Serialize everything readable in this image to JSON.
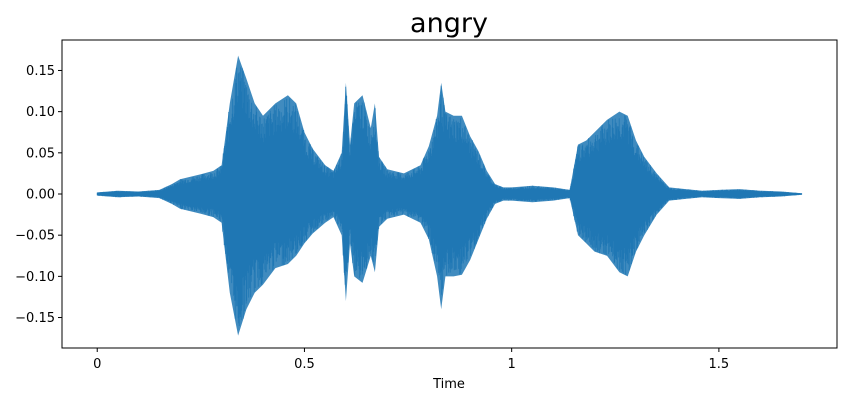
{
  "chart_data": {
    "type": "area",
    "title": "angry",
    "xlabel": "Time",
    "ylabel": "",
    "xlim": [
      -0.085,
      1.785
    ],
    "ylim": [
      -0.187,
      0.187
    ],
    "xticks": [
      {
        "value": 0,
        "label": "0"
      },
      {
        "value": 0.5,
        "label": "0.5"
      },
      {
        "value": 1,
        "label": "1"
      },
      {
        "value": 1.5,
        "label": "1.5"
      }
    ],
    "yticks": [
      {
        "value": 0.15,
        "label": "0.15"
      },
      {
        "value": 0.1,
        "label": "0.10"
      },
      {
        "value": 0.05,
        "label": "0.05"
      },
      {
        "value": 0.0,
        "label": "0.00"
      },
      {
        "value": -0.05,
        "label": "−0.05"
      },
      {
        "value": -0.1,
        "label": "−0.10"
      },
      {
        "value": -0.15,
        "label": "−0.15"
      }
    ],
    "grid": false,
    "color": "#1f77b4",
    "series": [
      {
        "description_points": "amplitude envelope (time in s, upper, lower)",
        "x": [
          0.0,
          0.05,
          0.1,
          0.15,
          0.18,
          0.2,
          0.25,
          0.28,
          0.3,
          0.32,
          0.34,
          0.36,
          0.38,
          0.4,
          0.43,
          0.46,
          0.48,
          0.5,
          0.52,
          0.55,
          0.57,
          0.59,
          0.6,
          0.61,
          0.62,
          0.64,
          0.66,
          0.67,
          0.68,
          0.7,
          0.74,
          0.78,
          0.8,
          0.82,
          0.83,
          0.84,
          0.86,
          0.88,
          0.9,
          0.92,
          0.94,
          0.96,
          0.98,
          1.0,
          1.05,
          1.1,
          1.14,
          1.16,
          1.18,
          1.2,
          1.23,
          1.26,
          1.28,
          1.3,
          1.32,
          1.35,
          1.38,
          1.42,
          1.46,
          1.5,
          1.55,
          1.6,
          1.65,
          1.7
        ],
        "upper": [
          0.002,
          0.004,
          0.003,
          0.005,
          0.012,
          0.018,
          0.024,
          0.028,
          0.035,
          0.11,
          0.168,
          0.14,
          0.11,
          0.095,
          0.11,
          0.12,
          0.11,
          0.075,
          0.055,
          0.035,
          0.028,
          0.05,
          0.135,
          0.06,
          0.11,
          0.12,
          0.08,
          0.11,
          0.045,
          0.03,
          0.025,
          0.035,
          0.058,
          0.095,
          0.135,
          0.1,
          0.095,
          0.095,
          0.07,
          0.052,
          0.028,
          0.012,
          0.008,
          0.008,
          0.01,
          0.008,
          0.005,
          0.06,
          0.065,
          0.075,
          0.09,
          0.1,
          0.095,
          0.065,
          0.045,
          0.025,
          0.008,
          0.006,
          0.004,
          0.005,
          0.006,
          0.004,
          0.003,
          0.001
        ],
        "lower": [
          -0.002,
          -0.004,
          -0.003,
          -0.005,
          -0.012,
          -0.018,
          -0.024,
          -0.028,
          -0.035,
          -0.12,
          -0.172,
          -0.14,
          -0.12,
          -0.11,
          -0.09,
          -0.085,
          -0.075,
          -0.06,
          -0.048,
          -0.035,
          -0.028,
          -0.05,
          -0.13,
          -0.06,
          -0.1,
          -0.108,
          -0.075,
          -0.095,
          -0.04,
          -0.03,
          -0.025,
          -0.035,
          -0.055,
          -0.1,
          -0.14,
          -0.1,
          -0.1,
          -0.098,
          -0.08,
          -0.055,
          -0.03,
          -0.012,
          -0.008,
          -0.008,
          -0.01,
          -0.008,
          -0.005,
          -0.05,
          -0.06,
          -0.07,
          -0.075,
          -0.095,
          -0.1,
          -0.07,
          -0.05,
          -0.025,
          -0.008,
          -0.006,
          -0.004,
          -0.005,
          -0.006,
          -0.004,
          -0.003,
          -0.001
        ]
      }
    ]
  }
}
